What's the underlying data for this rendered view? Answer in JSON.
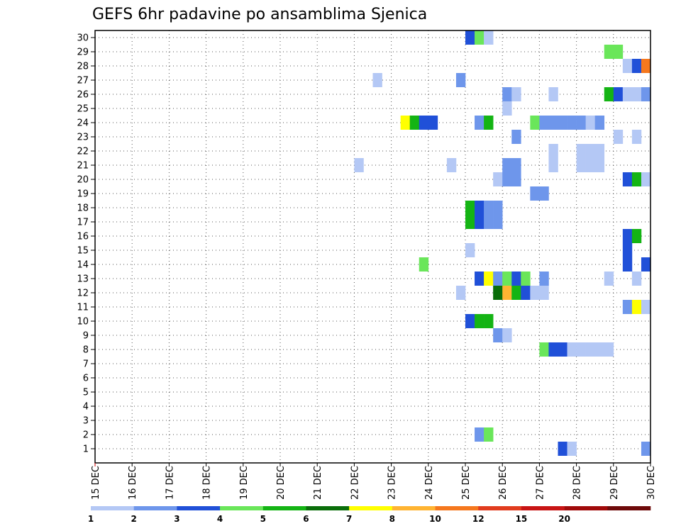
{
  "chart_data": {
    "type": "heatmap",
    "title": "GEFS 6hr padavine po ansamblima Sjenica",
    "x_labels": [
      "15 DEC",
      "16 DEC",
      "17 DEC",
      "18 DEC",
      "19 DEC",
      "20 DEC",
      "21 DEC",
      "22 DEC",
      "23 DEC",
      "24 DEC",
      "25 DEC",
      "26 DEC",
      "27 DEC",
      "28 DEC",
      "29 DEC",
      "30 DEC"
    ],
    "y_labels": [
      "1",
      "2",
      "3",
      "4",
      "5",
      "6",
      "7",
      "8",
      "9",
      "10",
      "11",
      "12",
      "13",
      "14",
      "15",
      "16",
      "17",
      "18",
      "19",
      "20",
      "21",
      "22",
      "23",
      "24",
      "25",
      "26",
      "27",
      "28",
      "29",
      "30"
    ],
    "steps_per_day": 4,
    "n_steps": 60,
    "legend": {
      "colors": [
        "#b4c8f5",
        "#6e96eb",
        "#2050d8",
        "#6ae65a",
        "#14b414",
        "#0a6e0a",
        "#ffff00",
        "#ffb432",
        "#f5781e",
        "#e13c1e",
        "#c81414",
        "#a00a0a",
        "#6e0a0a"
      ],
      "labels": [
        "1",
        "2",
        "3",
        "4",
        "5",
        "6",
        "7",
        "8",
        "10",
        "12",
        "15",
        "20"
      ]
    },
    "cells": [
      {
        "m": 1,
        "t": 50,
        "c": 3
      },
      {
        "m": 1,
        "t": 51,
        "c": 1
      },
      {
        "m": 1,
        "t": 59,
        "c": 2
      },
      {
        "m": 2,
        "t": 41,
        "c": 2
      },
      {
        "m": 2,
        "t": 42,
        "c": 4
      },
      {
        "m": 8,
        "t": 48,
        "c": 4
      },
      {
        "m": 8,
        "t": 49,
        "c": 3
      },
      {
        "m": 8,
        "t": 50,
        "c": 3
      },
      {
        "m": 8,
        "t": 51,
        "c": 1
      },
      {
        "m": 8,
        "t": 52,
        "c": 1
      },
      {
        "m": 8,
        "t": 53,
        "c": 1
      },
      {
        "m": 8,
        "t": 54,
        "c": 1
      },
      {
        "m": 8,
        "t": 55,
        "c": 1
      },
      {
        "m": 9,
        "t": 43,
        "c": 2
      },
      {
        "m": 9,
        "t": 44,
        "c": 1
      },
      {
        "m": 10,
        "t": 40,
        "c": 3
      },
      {
        "m": 10,
        "t": 41,
        "c": 5
      },
      {
        "m": 10,
        "t": 42,
        "c": 5
      },
      {
        "m": 11,
        "t": 57,
        "c": 2
      },
      {
        "m": 11,
        "t": 58,
        "c": 7
      },
      {
        "m": 11,
        "t": 59,
        "c": 1
      },
      {
        "m": 12,
        "t": 39,
        "c": 1
      },
      {
        "m": 12,
        "t": 43,
        "c": 6
      },
      {
        "m": 12,
        "t": 44,
        "c": 8
      },
      {
        "m": 12,
        "t": 45,
        "c": 5
      },
      {
        "m": 12,
        "t": 46,
        "c": 3
      },
      {
        "m": 12,
        "t": 47,
        "c": 1
      },
      {
        "m": 12,
        "t": 48,
        "c": 1
      },
      {
        "m": 13,
        "t": 41,
        "c": 3
      },
      {
        "m": 13,
        "t": 42,
        "c": 7
      },
      {
        "m": 13,
        "t": 43,
        "c": 2
      },
      {
        "m": 13,
        "t": 44,
        "c": 4
      },
      {
        "m": 13,
        "t": 45,
        "c": 3
      },
      {
        "m": 13,
        "t": 46,
        "c": 4
      },
      {
        "m": 13,
        "t": 48,
        "c": 2
      },
      {
        "m": 13,
        "t": 55,
        "c": 1
      },
      {
        "m": 13,
        "t": 58,
        "c": 1
      },
      {
        "m": 14,
        "t": 35,
        "c": 4
      },
      {
        "m": 14,
        "t": 57,
        "c": 3
      },
      {
        "m": 14,
        "t": 59,
        "c": 3
      },
      {
        "m": 15,
        "t": 40,
        "c": 1
      },
      {
        "m": 15,
        "t": 57,
        "c": 3
      },
      {
        "m": 16,
        "t": 57,
        "c": 3
      },
      {
        "m": 16,
        "t": 58,
        "c": 5
      },
      {
        "m": 17,
        "t": 40,
        "c": 5
      },
      {
        "m": 17,
        "t": 41,
        "c": 3
      },
      {
        "m": 17,
        "t": 42,
        "c": 2
      },
      {
        "m": 17,
        "t": 43,
        "c": 2
      },
      {
        "m": 18,
        "t": 40,
        "c": 5
      },
      {
        "m": 18,
        "t": 41,
        "c": 3
      },
      {
        "m": 18,
        "t": 42,
        "c": 2
      },
      {
        "m": 18,
        "t": 43,
        "c": 2
      },
      {
        "m": 19,
        "t": 47,
        "c": 2
      },
      {
        "m": 19,
        "t": 48,
        "c": 2
      },
      {
        "m": 20,
        "t": 43,
        "c": 1
      },
      {
        "m": 20,
        "t": 44,
        "c": 2
      },
      {
        "m": 20,
        "t": 45,
        "c": 2
      },
      {
        "m": 20,
        "t": 57,
        "c": 3
      },
      {
        "m": 20,
        "t": 58,
        "c": 5
      },
      {
        "m": 20,
        "t": 59,
        "c": 1
      },
      {
        "m": 21,
        "t": 28,
        "c": 1
      },
      {
        "m": 21,
        "t": 38,
        "c": 1
      },
      {
        "m": 21,
        "t": 44,
        "c": 2
      },
      {
        "m": 21,
        "t": 45,
        "c": 2
      },
      {
        "m": 21,
        "t": 49,
        "c": 1
      },
      {
        "m": 21,
        "t": 52,
        "c": 1
      },
      {
        "m": 21,
        "t": 53,
        "c": 1
      },
      {
        "m": 21,
        "t": 54,
        "c": 1
      },
      {
        "m": 22,
        "t": 49,
        "c": 1
      },
      {
        "m": 22,
        "t": 52,
        "c": 1
      },
      {
        "m": 22,
        "t": 53,
        "c": 1
      },
      {
        "m": 22,
        "t": 54,
        "c": 1
      },
      {
        "m": 23,
        "t": 45,
        "c": 2
      },
      {
        "m": 23,
        "t": 56,
        "c": 1
      },
      {
        "m": 23,
        "t": 58,
        "c": 1
      },
      {
        "m": 24,
        "t": 33,
        "c": 7
      },
      {
        "m": 24,
        "t": 34,
        "c": 5
      },
      {
        "m": 24,
        "t": 35,
        "c": 3
      },
      {
        "m": 24,
        "t": 36,
        "c": 3
      },
      {
        "m": 24,
        "t": 41,
        "c": 2
      },
      {
        "m": 24,
        "t": 42,
        "c": 5
      },
      {
        "m": 24,
        "t": 47,
        "c": 4
      },
      {
        "m": 24,
        "t": 48,
        "c": 2
      },
      {
        "m": 24,
        "t": 49,
        "c": 2
      },
      {
        "m": 24,
        "t": 50,
        "c": 2
      },
      {
        "m": 24,
        "t": 51,
        "c": 2
      },
      {
        "m": 24,
        "t": 52,
        "c": 2
      },
      {
        "m": 24,
        "t": 53,
        "c": 1
      },
      {
        "m": 24,
        "t": 54,
        "c": 2
      },
      {
        "m": 25,
        "t": 44,
        "c": 1
      },
      {
        "m": 26,
        "t": 44,
        "c": 2
      },
      {
        "m": 26,
        "t": 45,
        "c": 1
      },
      {
        "m": 26,
        "t": 49,
        "c": 1
      },
      {
        "m": 26,
        "t": 55,
        "c": 5
      },
      {
        "m": 26,
        "t": 56,
        "c": 3
      },
      {
        "m": 26,
        "t": 57,
        "c": 1
      },
      {
        "m": 26,
        "t": 58,
        "c": 1
      },
      {
        "m": 26,
        "t": 59,
        "c": 2
      },
      {
        "m": 27,
        "t": 30,
        "c": 1
      },
      {
        "m": 27,
        "t": 39,
        "c": 2
      },
      {
        "m": 28,
        "t": 57,
        "c": 1
      },
      {
        "m": 28,
        "t": 58,
        "c": 3
      },
      {
        "m": 28,
        "t": 59,
        "c": 9
      },
      {
        "m": 29,
        "t": 55,
        "c": 4
      },
      {
        "m": 29,
        "t": 56,
        "c": 4
      },
      {
        "m": 30,
        "t": 40,
        "c": 3
      },
      {
        "m": 30,
        "t": 41,
        "c": 4
      },
      {
        "m": 30,
        "t": 42,
        "c": 1
      }
    ]
  }
}
